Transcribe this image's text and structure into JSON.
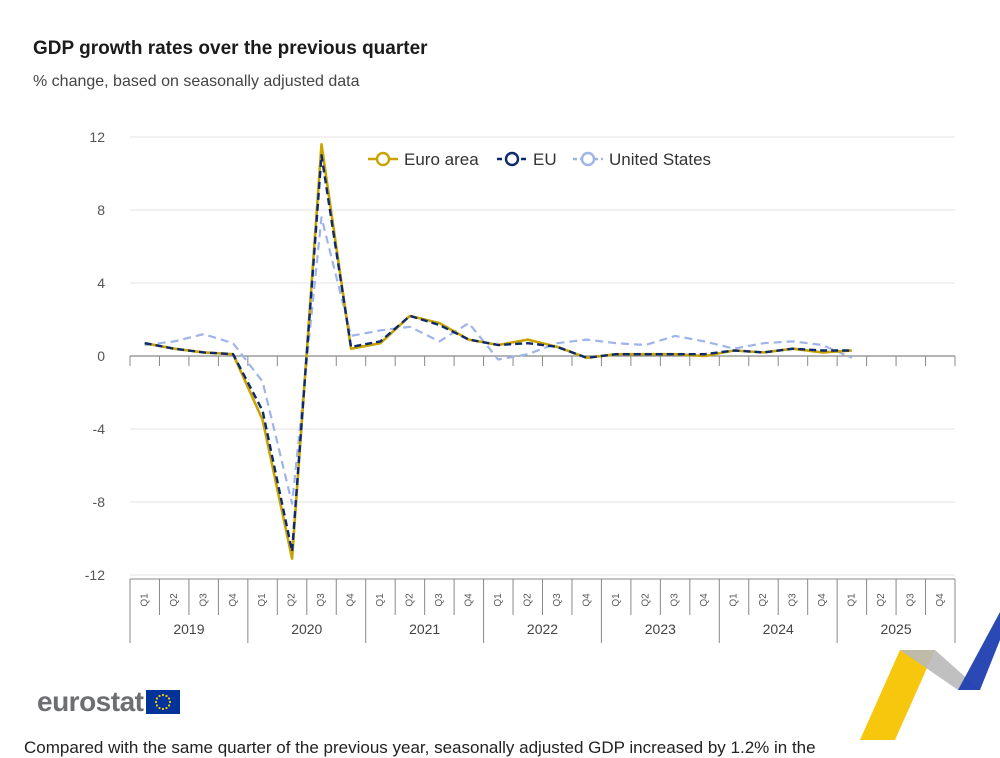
{
  "header": {
    "title": "GDP growth rates over the previous quarter",
    "subtitle": "% change, based on seasonally adjusted data"
  },
  "footer": {
    "logo_text": "eurostat",
    "partial_text": "Compared with the same quarter of the previous year, seasonally adjusted GDP increased by 1.2% in the"
  },
  "colors": {
    "euro_area": "#c9a300",
    "eu": "#0e2a6e",
    "us": "#9fb4e8",
    "grid": "#e3e3e3",
    "axis": "#888888"
  },
  "chart_data": {
    "type": "line",
    "title": "GDP growth rates over the previous quarter",
    "subtitle": "% change, based on seasonally adjusted data",
    "xlabel": "",
    "ylabel": "",
    "ylim": [
      -12,
      12
    ],
    "yticks": [
      12,
      8,
      4,
      0,
      -4,
      -8,
      -12
    ],
    "grid": true,
    "legend": "top",
    "years": [
      "2019",
      "2020",
      "2021",
      "2022",
      "2023",
      "2024",
      "2025"
    ],
    "quarters": [
      "Q1",
      "Q2",
      "Q3",
      "Q4"
    ],
    "series": [
      {
        "name": "Euro area",
        "values": [
          0.7,
          0.4,
          0.2,
          0.1,
          -3.5,
          -11.1,
          11.6,
          0.4,
          0.7,
          2.2,
          1.8,
          0.9,
          0.6,
          0.9,
          0.5,
          -0.1,
          0.1,
          0.1,
          0.1,
          0.0,
          0.3,
          0.2,
          0.4,
          0.2,
          0.3,
          null,
          null,
          null
        ]
      },
      {
        "name": "EU",
        "values": [
          0.7,
          0.4,
          0.2,
          0.1,
          -3.0,
          -10.7,
          11.0,
          0.5,
          0.8,
          2.2,
          1.7,
          0.9,
          0.6,
          0.7,
          0.5,
          -0.1,
          0.1,
          0.1,
          0.1,
          0.1,
          0.3,
          0.2,
          0.4,
          0.3,
          0.3,
          null,
          null,
          null
        ]
      },
      {
        "name": "United States",
        "values": [
          0.6,
          0.8,
          1.2,
          0.7,
          -1.4,
          -8.1,
          7.6,
          1.1,
          1.4,
          1.6,
          0.8,
          1.8,
          -0.2,
          0.1,
          0.7,
          0.9,
          0.7,
          0.6,
          1.1,
          0.8,
          0.4,
          0.7,
          0.8,
          0.6,
          -0.1,
          null,
          null,
          null
        ]
      }
    ]
  }
}
